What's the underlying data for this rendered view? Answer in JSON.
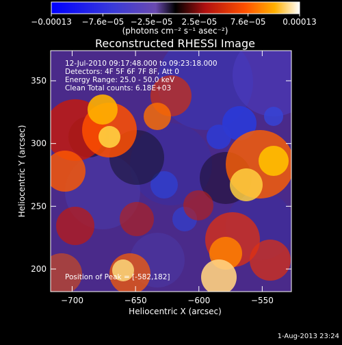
{
  "chart_data": {
    "type": "heatmap",
    "title": "Reconstructed RHESSI Image",
    "xlabel": "Heliocentric X (arcsec)",
    "ylabel": "Heliocentric Y (arcsec)",
    "xlim": [
      -717,
      -527
    ],
    "ylim": [
      182,
      374
    ],
    "x_ticks": [
      -700,
      -650,
      -600,
      -550
    ],
    "x_tick_labels": [
      "−700",
      "−650",
      "−600",
      "−550"
    ],
    "y_ticks": [
      200,
      250,
      300,
      350
    ],
    "y_tick_labels": [
      "200",
      "250",
      "300",
      "350"
    ],
    "colorbar": {
      "range": [
        -0.00013,
        0.00013
      ],
      "ticks": [
        -0.00013,
        -7.6e-05,
        -2.5e-05,
        2.5e-05,
        7.6e-05,
        0.00013
      ],
      "tick_labels": [
        "−0.00013",
        "−7.6e−05",
        "−2.5e−05",
        "2.5e−05",
        "7.6e−05",
        "0.00013"
      ],
      "units": "(photons cm⁻² s⁻¹ asec⁻²)"
    },
    "annotations": {
      "time_range": "12-Jul-2010 09:17:48.000 to 09:23:18.000",
      "detectors": "Detectors: 4F 5F 6F 7F 8F, Att 0",
      "energy": "Energy Range: 25.0 - 50.0 keV",
      "clean": "Clean     Total counts: 6.18E+03",
      "peak": "Position of Peak = [-582,182]"
    },
    "footer_date": "1-Aug-2013 23:24"
  }
}
